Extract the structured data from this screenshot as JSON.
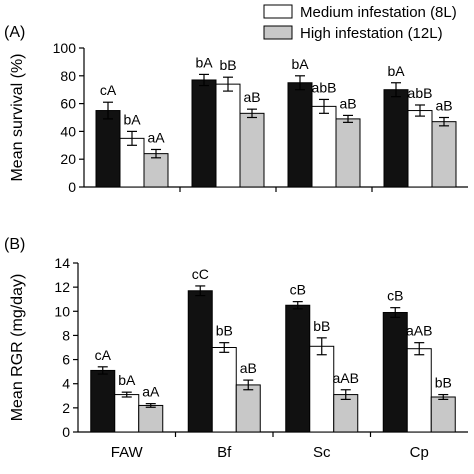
{
  "legend": {
    "items": [
      {
        "label": "Medium infestation (8L)",
        "fill": "#ffffff"
      },
      {
        "label": "High infestation (12L)",
        "fill": "#c8c8c8"
      }
    ]
  },
  "colors": {
    "low": "#111111",
    "medium": "#ffffff",
    "high": "#c8c8c8"
  },
  "chart_data": [
    {
      "type": "bar",
      "panel_label": "(A)",
      "ylabel": "Mean survival (%)",
      "categories": [
        "FAW",
        "Bf",
        "Sc",
        "Cp"
      ],
      "ylim": [
        0,
        100
      ],
      "yticks": [
        0,
        20,
        40,
        60,
        80,
        100
      ],
      "show_xticklabels": false,
      "series": [
        {
          "values": [
            55,
            77,
            75,
            70
          ],
          "errors": [
            6,
            4,
            5,
            5
          ],
          "labels": [
            "cA",
            "bA",
            "bA",
            "bA"
          ]
        },
        {
          "name": "Medium infestation (8L)",
          "values": [
            35,
            74,
            58,
            55
          ],
          "errors": [
            5,
            5,
            5,
            4
          ],
          "labels": [
            "bA",
            "bB",
            "abB",
            "abB"
          ]
        },
        {
          "name": "High infestation (12L)",
          "values": [
            24,
            53,
            49,
            47
          ],
          "errors": [
            3,
            3,
            2.5,
            3
          ],
          "labels": [
            "aA",
            "aB",
            "aB",
            "aB"
          ]
        }
      ]
    },
    {
      "type": "bar",
      "panel_label": "(B)",
      "ylabel": "Mean RGR (mg/day)",
      "categories": [
        "FAW",
        "Bf",
        "Sc",
        "Cp"
      ],
      "ylim": [
        0,
        14
      ],
      "yticks": [
        0,
        2,
        4,
        6,
        8,
        10,
        12,
        14
      ],
      "show_xticklabels": true,
      "series": [
        {
          "values": [
            5.1,
            11.7,
            10.5,
            9.9
          ],
          "errors": [
            0.3,
            0.4,
            0.3,
            0.4
          ],
          "labels": [
            "cA",
            "cC",
            "cB",
            "cB"
          ]
        },
        {
          "name": "Medium infestation (8L)",
          "values": [
            3.1,
            7.0,
            7.1,
            6.9
          ],
          "errors": [
            0.2,
            0.4,
            0.7,
            0.5
          ],
          "labels": [
            "bA",
            "bB",
            "bB",
            "aAB"
          ]
        },
        {
          "name": "High infestation (12L)",
          "values": [
            2.2,
            3.9,
            3.1,
            2.9
          ],
          "errors": [
            0.15,
            0.4,
            0.4,
            0.2
          ],
          "labels": [
            "aA",
            "aB",
            "aAB",
            "bB"
          ]
        }
      ]
    }
  ]
}
